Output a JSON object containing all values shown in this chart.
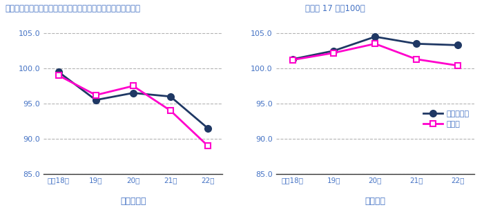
{
  "title": "図３－３　主な産業別常用雇用指数の推移（規模３０人以上）",
  "subtitle": "（平成 17 年＝100）",
  "x_labels": [
    "平成18年",
    "19年",
    "20年",
    "21年",
    "22年"
  ],
  "left_subtitle": "《鳥取県》",
  "right_subtitle": "《全国》",
  "left_survey": [
    99.5,
    95.5,
    96.5,
    96.0,
    91.5
  ],
  "left_manuf": [
    99.0,
    96.2,
    97.5,
    94.0,
    89.0
  ],
  "right_survey": [
    101.3,
    102.5,
    104.5,
    103.5,
    103.3
  ],
  "right_manuf": [
    101.2,
    102.2,
    103.5,
    101.3,
    100.4
  ],
  "ylim": [
    85.0,
    105.5
  ],
  "yticks": [
    85.0,
    90.0,
    95.0,
    100.0,
    105.0
  ],
  "survey_color": "#1F3864",
  "manuf_color": "#FF00CC",
  "legend_survey": "調査産業計",
  "legend_manuf": "製造業",
  "text_color": "#4472C4",
  "grid_color": "#808080",
  "bg_color": "#FFFFFF"
}
